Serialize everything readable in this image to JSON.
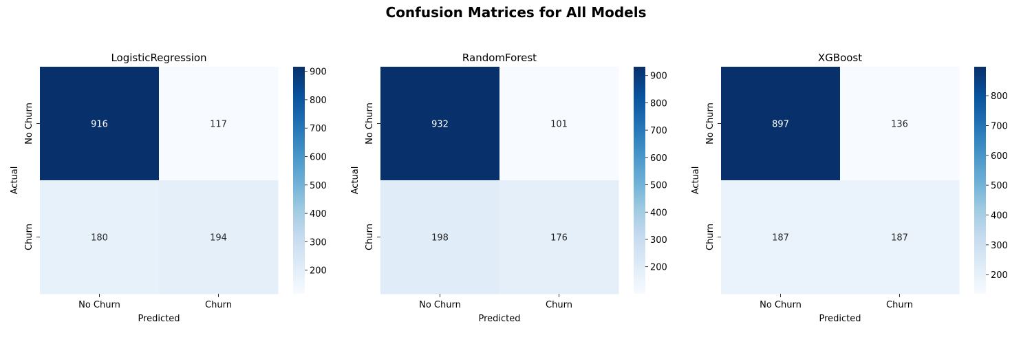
{
  "figure": {
    "title": "Confusion Matrices for All Models"
  },
  "chart_data": [
    {
      "type": "heatmap",
      "title": "LogisticRegression",
      "xlabel": "Predicted",
      "ylabel": "Actual",
      "x_categories": [
        "No Churn",
        "Churn"
      ],
      "y_categories": [
        "No Churn",
        "Churn"
      ],
      "values": [
        [
          916,
          117
        ],
        [
          180,
          194
        ]
      ],
      "colormap": "Blues",
      "colorbar": {
        "range": [
          117,
          916
        ],
        "ticks": [
          200,
          300,
          400,
          500,
          600,
          700,
          800,
          900
        ]
      }
    },
    {
      "type": "heatmap",
      "title": "RandomForest",
      "xlabel": "Predicted",
      "ylabel": "Actual",
      "x_categories": [
        "No Churn",
        "Churn"
      ],
      "y_categories": [
        "No Churn",
        "Churn"
      ],
      "values": [
        [
          932,
          101
        ],
        [
          198,
          176
        ]
      ],
      "colormap": "Blues",
      "colorbar": {
        "range": [
          101,
          932
        ],
        "ticks": [
          200,
          300,
          400,
          500,
          600,
          700,
          800,
          900
        ]
      }
    },
    {
      "type": "heatmap",
      "title": "XGBoost",
      "xlabel": "Predicted",
      "ylabel": "Actual",
      "x_categories": [
        "No Churn",
        "Churn"
      ],
      "y_categories": [
        "No Churn",
        "Churn"
      ],
      "values": [
        [
          897,
          136
        ],
        [
          187,
          187
        ]
      ],
      "colormap": "Blues",
      "colorbar": {
        "range": [
          136,
          897
        ],
        "ticks": [
          200,
          300,
          400,
          500,
          600,
          700,
          800
        ]
      }
    }
  ]
}
